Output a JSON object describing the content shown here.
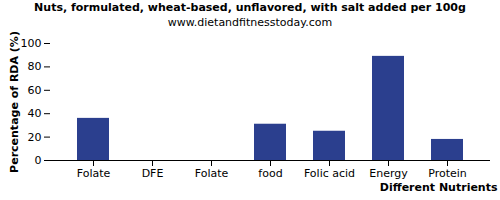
{
  "chart_data": {
    "type": "bar",
    "title": "Nuts, formulated, wheat-based, unflavored, with salt added per 100g",
    "subtitle": "www.dietandfitnesstoday.com",
    "x_label": "Different Nutrients",
    "y_label": "Percentage of RDA (%)",
    "categories": [
      "Folate",
      "DFE",
      "Folate",
      "food",
      "Folic acid",
      "Energy",
      "Protein"
    ],
    "values": [
      36,
      0,
      0,
      31,
      25,
      89,
      18
    ],
    "color": "#2b3f8e",
    "ylim": [
      0,
      100
    ],
    "yticks": [
      0,
      20,
      40,
      60,
      80,
      100
    ],
    "grid": false
  }
}
